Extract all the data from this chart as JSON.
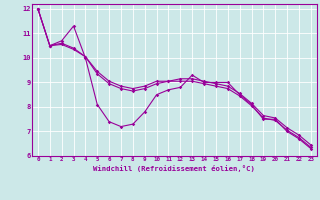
{
  "xlabel": "Windchill (Refroidissement éolien,°C)",
  "bg_color": "#cce8e8",
  "grid_color": "#ffffff",
  "line_color": "#990099",
  "xlim": [
    -0.5,
    23.5
  ],
  "ylim": [
    6.0,
    12.2
  ],
  "xticks": [
    0,
    1,
    2,
    3,
    4,
    5,
    6,
    7,
    8,
    9,
    10,
    11,
    12,
    13,
    14,
    15,
    16,
    17,
    18,
    19,
    20,
    21,
    22,
    23
  ],
  "yticks": [
    6,
    7,
    8,
    9,
    10,
    11,
    12
  ],
  "series": [
    [
      12.0,
      10.5,
      10.7,
      11.3,
      10.0,
      8.1,
      7.4,
      7.2,
      7.3,
      7.8,
      8.5,
      8.7,
      8.8,
      9.3,
      9.0,
      9.0,
      9.0,
      8.5,
      8.1,
      7.5,
      7.5,
      7.0,
      6.7,
      6.3
    ],
    [
      12.0,
      10.5,
      10.6,
      10.4,
      10.05,
      9.35,
      8.95,
      8.75,
      8.65,
      8.75,
      8.95,
      9.05,
      9.05,
      9.05,
      8.95,
      8.85,
      8.75,
      8.45,
      8.05,
      7.55,
      7.45,
      7.05,
      6.75,
      6.35
    ],
    [
      12.0,
      10.5,
      10.55,
      10.35,
      10.05,
      9.45,
      9.05,
      8.85,
      8.75,
      8.85,
      9.05,
      9.05,
      9.15,
      9.15,
      9.05,
      8.95,
      8.85,
      8.55,
      8.15,
      7.65,
      7.55,
      7.15,
      6.85,
      6.45
    ]
  ]
}
